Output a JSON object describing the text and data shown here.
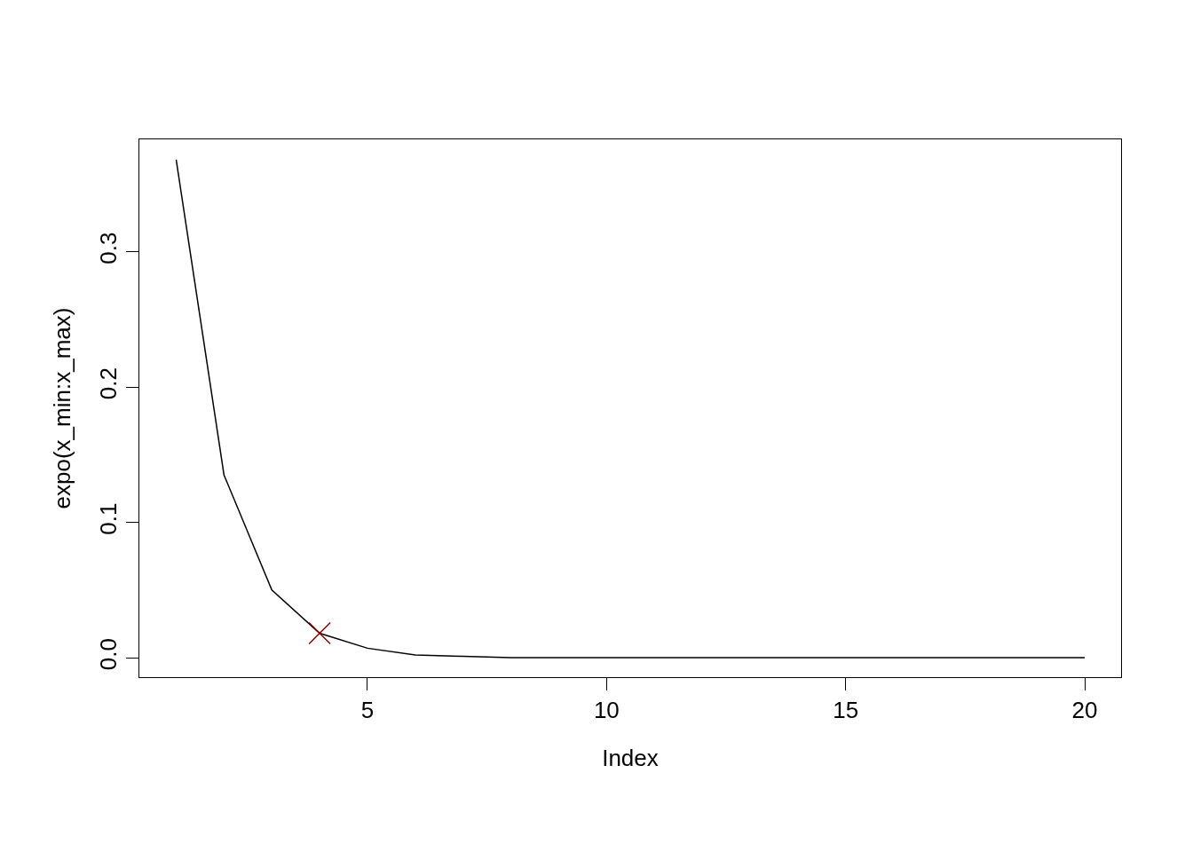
{
  "chart_data": {
    "type": "line",
    "xlabel": "Index",
    "ylabel": "expo(x_min:x_max)",
    "xlim": [
      0.23,
      20.76
    ],
    "ylim": [
      -0.0144,
      0.383
    ],
    "xticks": [
      5,
      10,
      15,
      20
    ],
    "yticks": [
      {
        "value": 0,
        "label": "0.0"
      },
      {
        "value": 0.1,
        "label": "0.1"
      },
      {
        "value": 0.2,
        "label": "0.2"
      },
      {
        "value": 0.3,
        "label": "0.3"
      }
    ],
    "marker": "none",
    "line_style": "solid",
    "series": [
      {
        "color": "#000000",
        "x": [
          1,
          2,
          3,
          4,
          5,
          6,
          7,
          8,
          9,
          10,
          11,
          12,
          13,
          14,
          15,
          16,
          17,
          18,
          19,
          20
        ],
        "values": [
          0.368,
          0.135,
          0.05,
          0.018,
          0.007,
          0.002,
          0.001,
          0,
          0,
          0,
          0,
          0,
          0,
          0,
          0,
          0,
          0,
          0,
          0,
          0
        ]
      },
      {
        "type": "scatter",
        "color": "#8b0000",
        "marker": "cross",
        "x": [
          4
        ],
        "values": [
          0.018
        ]
      }
    ]
  }
}
